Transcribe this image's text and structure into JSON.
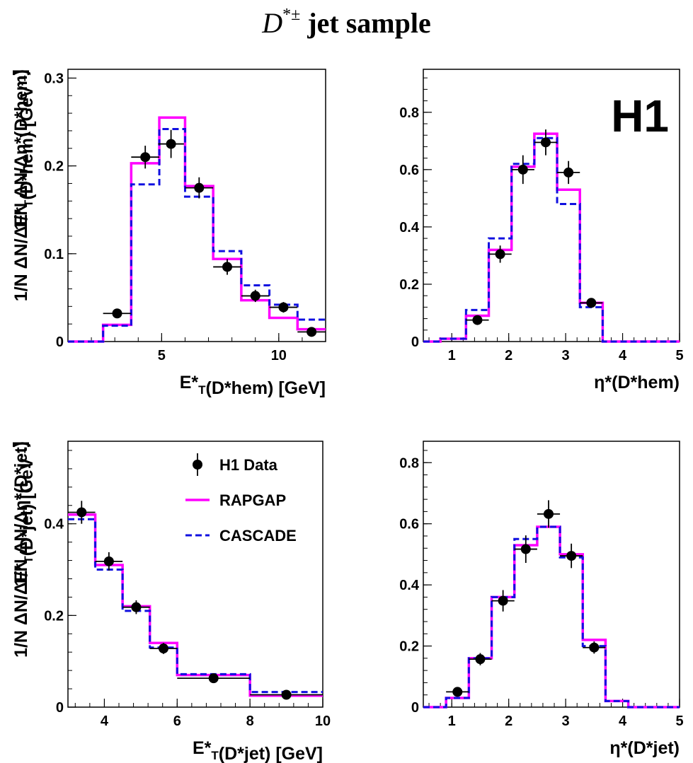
{
  "figure": {
    "title_symbol": "D",
    "title_superscript": "*±",
    "title_text": " jet sample",
    "brand": "H1",
    "colors": {
      "rapgap": "#ff00ff",
      "cascade": "#1010e0",
      "data": "#000000"
    }
  },
  "legend": {
    "placement": "top-right of bottom-left panel",
    "entries": [
      {
        "label": "H1 Data",
        "style": "marker"
      },
      {
        "label": "RAPGAP",
        "style": "solid-magenta"
      },
      {
        "label": "CASCADE",
        "style": "dashed-blue"
      }
    ]
  },
  "chart_data": [
    {
      "type": "step-histogram-with-points",
      "id": "et_hem",
      "xlabel": "E*_T(D*hem) [GeV]",
      "ylabel": "1/N ΔN/ΔE*_T(D*hem) [GeV^-1]",
      "xlim": [
        1,
        12
      ],
      "ylim": [
        0,
        0.31
      ],
      "xticks": [
        5,
        10
      ],
      "xtick_labels": [
        "5",
        "10"
      ],
      "yticks": [
        0,
        0.1,
        0.2,
        0.3
      ],
      "ytick_labels": [
        "0",
        "0.1",
        "0.2",
        "0.3"
      ],
      "edges": [
        1,
        2.5,
        3.7,
        4.9,
        6.0,
        7.2,
        8.4,
        9.6,
        10.8,
        12
      ],
      "rapgap": [
        0,
        0.019,
        0.203,
        0.255,
        0.177,
        0.094,
        0.047,
        0.027,
        0.014
      ],
      "cascade": [
        0,
        0.018,
        0.179,
        0.242,
        0.165,
        0.103,
        0.064,
        0.042,
        0.025
      ],
      "data": {
        "x": [
          3.1,
          4.3,
          5.4,
          6.6,
          7.8,
          9.0,
          10.2,
          11.4
        ],
        "y": [
          0.032,
          0.21,
          0.225,
          0.175,
          0.085,
          0.052,
          0.039,
          0.011
        ],
        "xerr": [
          0.6,
          0.6,
          0.55,
          0.6,
          0.6,
          0.6,
          0.6,
          0.6
        ],
        "yerr": [
          0.004,
          0.013,
          0.016,
          0.012,
          0.009,
          0.007,
          0.006,
          0.003
        ]
      }
    },
    {
      "type": "step-histogram-with-points",
      "id": "eta_hem",
      "xlabel": "η*(D*hem)",
      "ylabel": "1/N ΔN/Δη*(D*hem)",
      "xlim": [
        0.5,
        5
      ],
      "ylim": [
        0,
        0.95
      ],
      "xticks": [
        1,
        2,
        3,
        4,
        5
      ],
      "xtick_labels": [
        "1",
        "2",
        "3",
        "4",
        "5"
      ],
      "yticks": [
        0,
        0.2,
        0.4,
        0.6,
        0.8
      ],
      "ytick_labels": [
        "0",
        "0.2",
        "0.4",
        "0.6",
        "0.8"
      ],
      "edges": [
        0.5,
        0.8,
        1.25,
        1.65,
        2.05,
        2.45,
        2.85,
        3.25,
        3.65,
        4.5,
        5
      ],
      "rapgap": [
        0,
        0.01,
        0.09,
        0.32,
        0.61,
        0.725,
        0.53,
        0.135,
        0,
        0
      ],
      "cascade": [
        0,
        0.01,
        0.11,
        0.36,
        0.62,
        0.71,
        0.48,
        0.12,
        0,
        0
      ],
      "data": {
        "x": [
          1.45,
          1.85,
          2.25,
          2.65,
          3.05,
          3.45
        ],
        "y": [
          0.075,
          0.305,
          0.6,
          0.695,
          0.59,
          0.135
        ],
        "xerr": [
          0.2,
          0.2,
          0.2,
          0.2,
          0.2,
          0.2
        ],
        "yerr": [
          0.015,
          0.03,
          0.05,
          0.045,
          0.04,
          0.015
        ]
      }
    },
    {
      "type": "step-histogram-with-points",
      "id": "et_jet",
      "xlabel": "E*_T(D*jet) [GeV]",
      "ylabel": "1/N ΔN/ΔE*_T(D*jet) [GeV^-1]",
      "xlim": [
        3,
        10
      ],
      "ylim": [
        0,
        0.58
      ],
      "xticks": [
        4,
        6,
        8,
        10
      ],
      "xtick_labels": [
        "4",
        "6",
        "8",
        "10"
      ],
      "yticks": [
        0,
        0.2,
        0.4
      ],
      "ytick_labels": [
        "0",
        "0.2",
        "0.4"
      ],
      "edges": [
        3,
        3.75,
        4.5,
        5.25,
        6,
        8,
        10
      ],
      "rapgap": [
        0.42,
        0.31,
        0.22,
        0.14,
        0.07,
        0.025
      ],
      "cascade": [
        0.41,
        0.3,
        0.21,
        0.13,
        0.072,
        0.033
      ],
      "data": {
        "x": [
          3.375,
          4.125,
          4.875,
          5.625,
          7.0,
          9.0
        ],
        "y": [
          0.425,
          0.318,
          0.218,
          0.128,
          0.063,
          0.027
        ],
        "xerr": [
          0.375,
          0.375,
          0.375,
          0.375,
          1.0,
          1.0
        ],
        "yerr": [
          0.025,
          0.02,
          0.015,
          0.012,
          0.005,
          0.003
        ]
      }
    },
    {
      "type": "step-histogram-with-points",
      "id": "eta_jet",
      "xlabel": "η*(D*jet)",
      "ylabel": "1/N ΔN/Δη*(D*jet)",
      "xlim": [
        0.5,
        5
      ],
      "ylim": [
        0,
        0.87
      ],
      "xticks": [
        1,
        2,
        3,
        4,
        5
      ],
      "xtick_labels": [
        "1",
        "2",
        "3",
        "4",
        "5"
      ],
      "yticks": [
        0,
        0.2,
        0.4,
        0.6,
        0.8
      ],
      "ytick_labels": [
        "0",
        "0.2",
        "0.4",
        "0.6",
        "0.8"
      ],
      "edges": [
        0.5,
        0.9,
        1.3,
        1.7,
        2.1,
        2.5,
        2.9,
        3.3,
        3.7,
        4.1,
        5
      ],
      "rapgap": [
        0,
        0.03,
        0.16,
        0.36,
        0.53,
        0.59,
        0.5,
        0.22,
        0.02,
        0
      ],
      "cascade": [
        0,
        0.03,
        0.16,
        0.36,
        0.55,
        0.59,
        0.49,
        0.2,
        0.02,
        0
      ],
      "data": {
        "x": [
          1.1,
          1.5,
          1.9,
          2.3,
          2.7,
          3.1,
          3.5
        ],
        "y": [
          0.05,
          0.157,
          0.348,
          0.517,
          0.632,
          0.495,
          0.195
        ],
        "xerr": [
          0.2,
          0.2,
          0.2,
          0.2,
          0.2,
          0.2,
          0.2
        ],
        "yerr": [
          0.01,
          0.02,
          0.035,
          0.045,
          0.045,
          0.04,
          0.02
        ]
      }
    }
  ]
}
